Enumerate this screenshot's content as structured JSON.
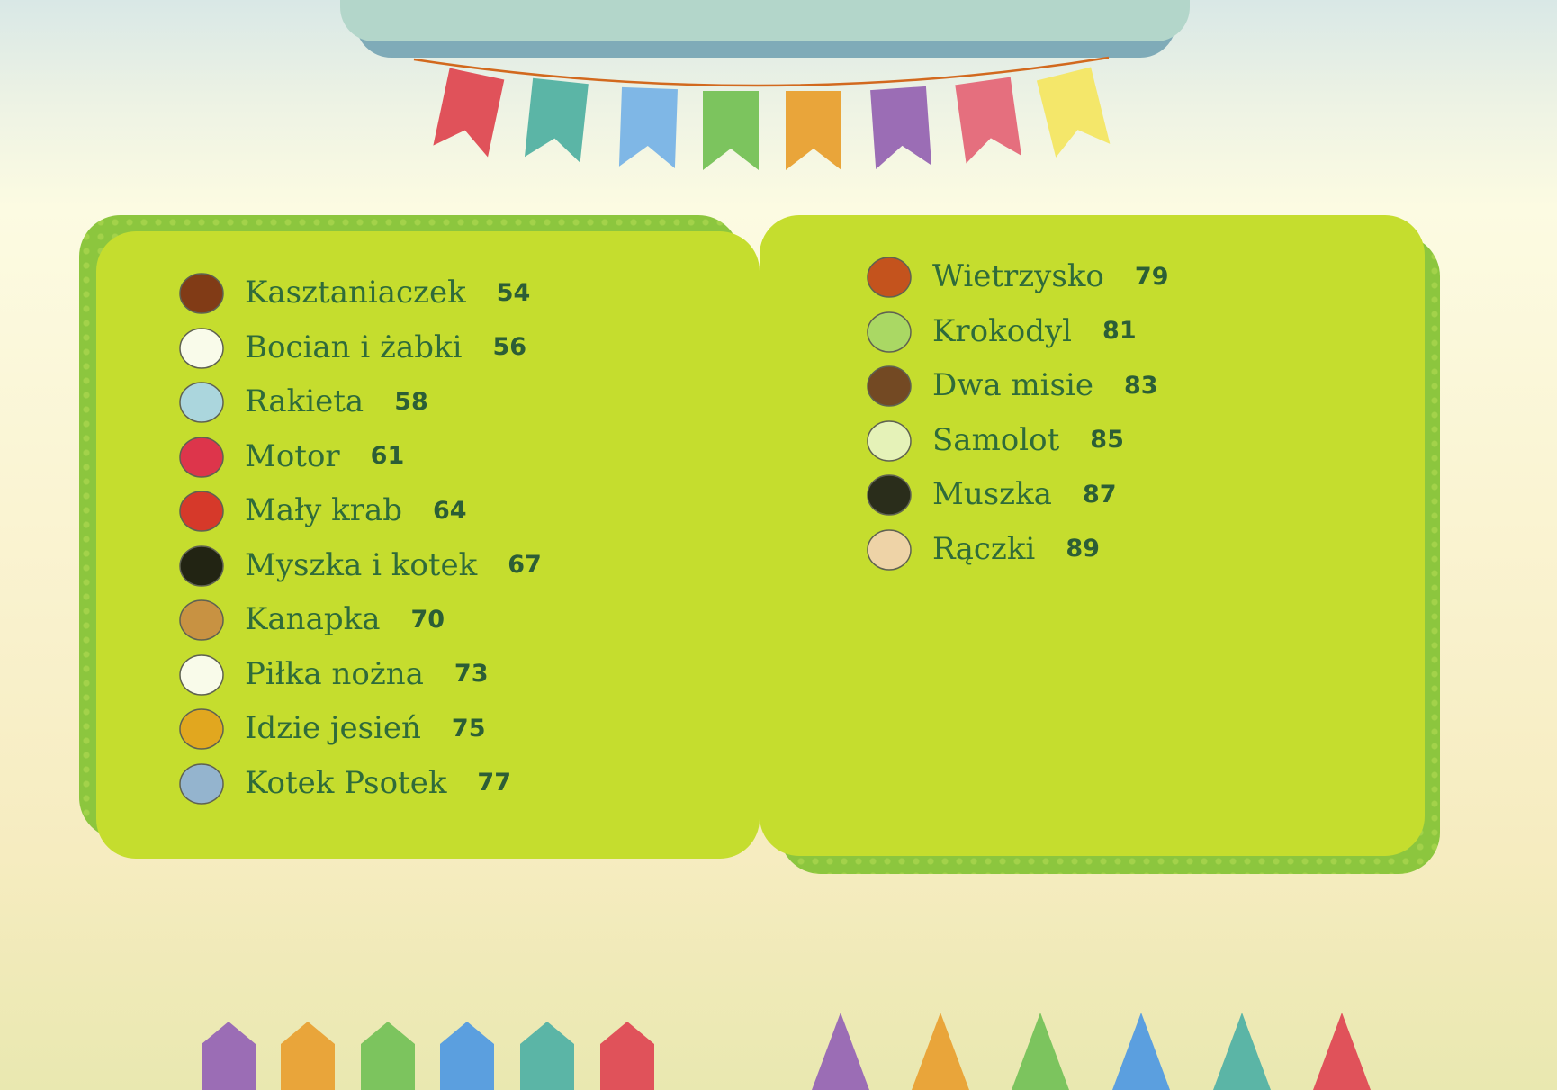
{
  "toc_left": [
    {
      "title": "Kasztaniaczek",
      "page": "54",
      "icon": "chestnut-man-icon",
      "color": "#7a2a14"
    },
    {
      "title": "Bocian i żabki",
      "page": "56",
      "icon": "stork-frogs-icon",
      "color": "#ffffff"
    },
    {
      "title": "Rakieta",
      "page": "58",
      "icon": "rocket-icon",
      "color": "#a9d6f0"
    },
    {
      "title": "Motor",
      "page": "61",
      "icon": "scooter-icon",
      "color": "#e0234f"
    },
    {
      "title": "Mały krab",
      "page": "64",
      "icon": "crab-icon",
      "color": "#d8282a"
    },
    {
      "title": "Myszka i kotek",
      "page": "67",
      "icon": "cat-mouse-icon",
      "color": "#111111"
    },
    {
      "title": "Kanapka",
      "page": "70",
      "icon": "sandwich-icon",
      "color": "#c98a45"
    },
    {
      "title": "Piłka nożna",
      "page": "73",
      "icon": "soccer-ball-icon",
      "color": "#ffffff"
    },
    {
      "title": "Idzie jesień",
      "page": "75",
      "icon": "autumn-chestnuts-icon",
      "color": "#e5a21e"
    },
    {
      "title": "Kotek Psotek",
      "page": "77",
      "icon": "kitten-icon",
      "color": "#8fb0e0"
    }
  ],
  "toc_right": [
    {
      "title": "Wietrzysko",
      "page": "79",
      "icon": "windy-tree-icon",
      "color": "#c4451c"
    },
    {
      "title": "Krokodyl",
      "page": "81",
      "icon": "crocodile-icon",
      "color": "#a8d86a"
    },
    {
      "title": "Dwa misie",
      "page": "83",
      "icon": "teddy-bears-icon",
      "color": "#6b3a22"
    },
    {
      "title": "Samolot",
      "page": "85",
      "icon": "airplane-icon",
      "color": "#e9f5c8"
    },
    {
      "title": "Muszka",
      "page": "87",
      "icon": "fly-icon",
      "color": "#1a1a1a"
    },
    {
      "title": "Rączki",
      "page": "89",
      "icon": "hands-icon",
      "color": "#f3d2b5"
    }
  ],
  "colors": {
    "panel": "#c5dd2e",
    "panel_border": "#8cc63e",
    "text": "#2f6b3a",
    "flags": [
      "#e0525a",
      "#5bb5a6",
      "#7fb7e6",
      "#7cc45e",
      "#e9a53a",
      "#9b6db5",
      "#e56f7e",
      "#f4e76a"
    ],
    "pencils": [
      "#9b6db5",
      "#e9a53a",
      "#7cc45e",
      "#5b9fdf",
      "#5bb5a6",
      "#e0525a"
    ]
  }
}
